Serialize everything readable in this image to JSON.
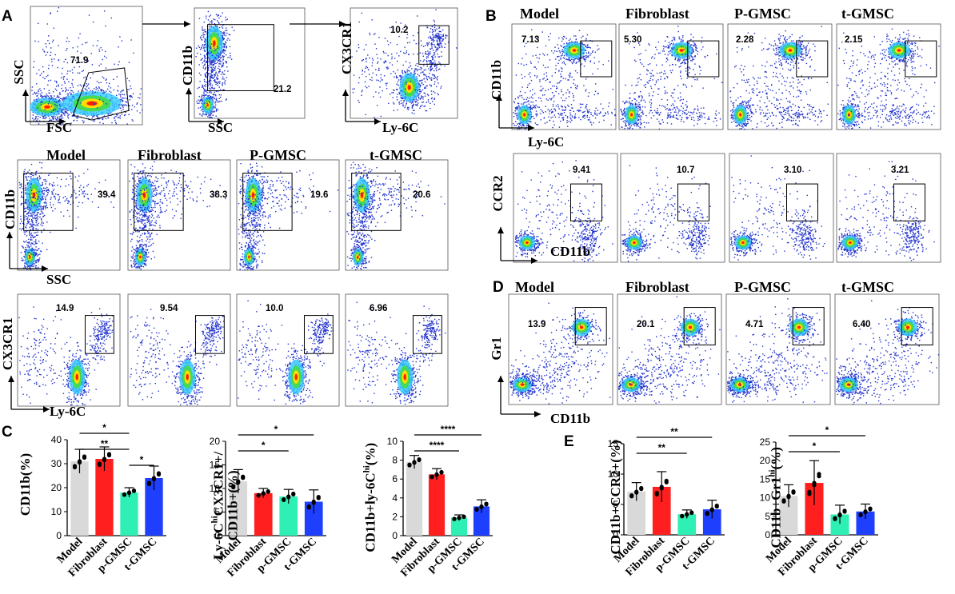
{
  "panel_labels": {
    "A": "A",
    "B": "B",
    "C": "C",
    "D": "D",
    "E": "E"
  },
  "groups": [
    "Model",
    "Fibroblast",
    "P-GMSC",
    "t-GMSC"
  ],
  "panel_A": {
    "gating": [
      {
        "x_label": "FSC",
        "y_label": "SSC",
        "value": "71.9"
      },
      {
        "x_label": "SSC",
        "y_label": "CD11b",
        "value": "21.2"
      },
      {
        "x_label": "Ly-6C",
        "y_label": "CX3CR1",
        "value": "10.2"
      }
    ],
    "row2": {
      "x_label": "SSC",
      "y_label": "CD11b",
      "values": [
        "39.4",
        "38.3",
        "19.6",
        "20.6"
      ]
    },
    "row3": {
      "x_label": "Ly-6C",
      "y_label": "CX3CR1",
      "values": [
        "14.9",
        "9.54",
        "10.0",
        "6.96"
      ]
    }
  },
  "panel_B": {
    "row1": {
      "x_label": "Ly-6C",
      "y_label": "CD11b",
      "values": [
        "7.13",
        "5.30",
        "2.28",
        "2.15"
      ]
    },
    "row2": {
      "x_label": "CD11b",
      "y_label": "CCR2",
      "values": [
        "9.41",
        "10.7",
        "3.10",
        "3.21"
      ]
    }
  },
  "panel_D": {
    "x_label": "CD11b",
    "y_label": "Gr1",
    "values": [
      "13.9",
      "20.1",
      "4.71",
      "6.40"
    ]
  },
  "colors": {
    "model": "#d9d9d9",
    "fibroblast": "#ff1f1f",
    "pgmsc": "#2ff0b4",
    "tgmsc": "#1f3fff"
  },
  "chart_data": [
    {
      "type": "bar",
      "ylabel": "CD11b(%)",
      "categories": [
        "Model",
        "Fibroblast",
        "p-GMSC",
        "t-GMSC"
      ],
      "values": [
        31,
        32,
        18,
        24
      ],
      "errors": [
        5,
        5,
        2,
        5
      ],
      "ylim": [
        0,
        40
      ],
      "yticks": [
        "0",
        "10",
        "20",
        "30",
        "40"
      ],
      "significance": [
        {
          "from": 0,
          "to": 2,
          "label": "*"
        },
        {
          "from": 0,
          "to": 2,
          "label": "**"
        },
        {
          "from": 2,
          "to": 3,
          "label": "*"
        }
      ]
    },
    {
      "type": "bar",
      "ylabel_lines": [
        "Ly-6C",
        "hi",
        "CX3CR1+/",
        "CD11b+(%)"
      ],
      "categories": [
        "Model",
        "Fibroblast",
        "p-GMSC",
        "t-GMSC"
      ],
      "values": [
        11.5,
        9,
        8.3,
        7.2
      ],
      "errors": [
        2.5,
        1,
        1.5,
        2.5
      ],
      "ylim": [
        0,
        20
      ],
      "yticks": [
        "0",
        "5",
        "10",
        "15",
        "20"
      ],
      "significance": [
        {
          "from": 0,
          "to": 3,
          "label": "*"
        },
        {
          "from": 0,
          "to": 2,
          "label": "*"
        }
      ]
    },
    {
      "type": "bar",
      "ylabel_lines": [
        "CD11b+ly-6C",
        "hi",
        "(%)"
      ],
      "categories": [
        "Model",
        "Fibroblast",
        "p-GMSC",
        "t-GMSC"
      ],
      "values": [
        7.8,
        6.5,
        1.9,
        3.1
      ],
      "errors": [
        0.7,
        0.6,
        0.3,
        0.7
      ],
      "ylim": [
        0,
        10
      ],
      "yticks": [
        "0",
        "2",
        "4",
        "6",
        "8",
        "10"
      ],
      "significance": [
        {
          "from": 0,
          "to": 3,
          "label": "****"
        },
        {
          "from": 0,
          "to": 2,
          "label": "****"
        }
      ]
    },
    {
      "type": "bar",
      "ylabel": "CD11b+CCR2+(%)",
      "categories": [
        "Model",
        "Fibroblast",
        "p-GMSC",
        "t-GMSC"
      ],
      "values": [
        7.1,
        7.9,
        3.4,
        4.2
      ],
      "errors": [
        1.5,
        2.5,
        0.7,
        1.5
      ],
      "ylim": [
        0,
        15
      ],
      "yticks": [
        "0",
        "5",
        "10",
        "15"
      ],
      "significance": [
        {
          "from": 0,
          "to": 3,
          "label": "**"
        },
        {
          "from": 0,
          "to": 2,
          "label": "**"
        }
      ]
    },
    {
      "type": "bar",
      "ylabel_lines": [
        "CD11b+Gr1",
        "hi",
        "(%)"
      ],
      "categories": [
        "Model",
        "Fibroblast",
        "p-GMSC",
        "t-GMSC"
      ],
      "values": [
        10.5,
        14,
        5.5,
        6.3
      ],
      "errors": [
        3,
        6,
        2.5,
        2
      ],
      "ylim": [
        0,
        25
      ],
      "yticks": [
        "0",
        "5",
        "10",
        "15",
        "20",
        "25"
      ],
      "significance": [
        {
          "from": 0,
          "to": 3,
          "label": "*"
        },
        {
          "from": 0,
          "to": 2,
          "label": "*"
        }
      ]
    }
  ]
}
